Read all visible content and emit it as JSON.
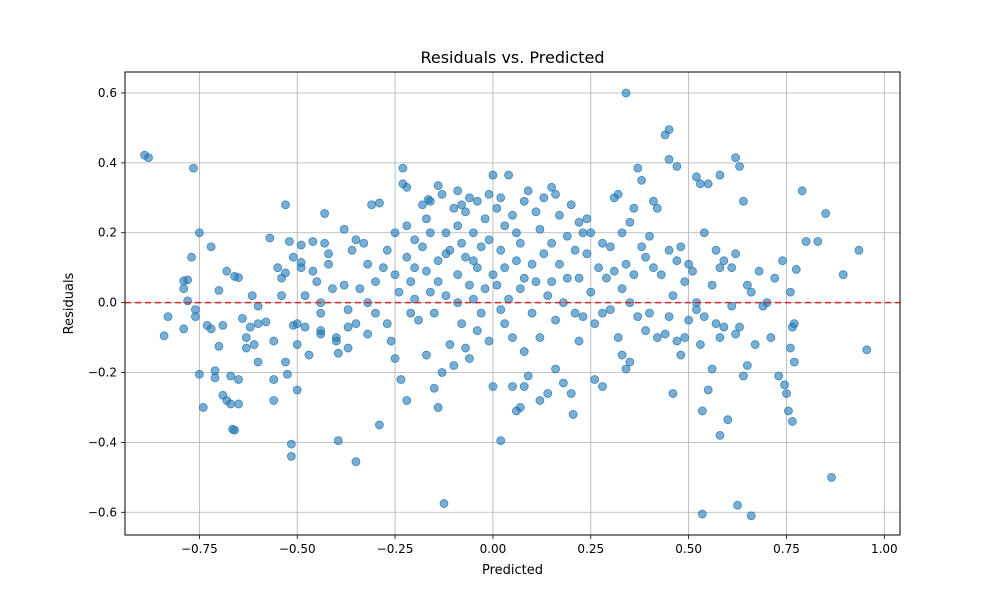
{
  "chart_data": {
    "type": "scatter",
    "title": "Residuals vs. Predicted",
    "xlabel": "Predicted",
    "ylabel": "Residuals",
    "xlim": [
      -0.94,
      1.04
    ],
    "ylim": [
      -0.665,
      0.66
    ],
    "xticks": [
      -0.75,
      -0.5,
      -0.25,
      0.0,
      0.25,
      0.5,
      0.75,
      1.0
    ],
    "xtick_labels": [
      "−0.75",
      "−0.50",
      "−0.25",
      "0.00",
      "0.25",
      "0.50",
      "0.75",
      "1.00"
    ],
    "yticks": [
      -0.6,
      -0.4,
      -0.2,
      0.0,
      0.2,
      0.4,
      0.6
    ],
    "ytick_labels": [
      "−0.6",
      "−0.4",
      "−0.2",
      "0.0",
      "0.2",
      "0.4",
      "0.6"
    ],
    "grid": true,
    "point_color": "#1f77b4",
    "point_alpha": 0.6,
    "reference_line": {
      "y": 0.0,
      "color": "#d62728",
      "style": "dashed"
    },
    "points": [
      [
        -0.89,
        0.422
      ],
      [
        -0.88,
        0.415
      ],
      [
        -0.765,
        0.385
      ],
      [
        -0.75,
        0.2
      ],
      [
        -0.72,
        0.16
      ],
      [
        -0.77,
        0.13
      ],
      [
        -0.78,
        0.065
      ],
      [
        -0.79,
        0.062
      ],
      [
        -0.79,
        0.04
      ],
      [
        -0.84,
        -0.095
      ],
      [
        -0.83,
        -0.04
      ],
      [
        -0.79,
        -0.075
      ],
      [
        -0.78,
        0.005
      ],
      [
        -0.76,
        -0.02
      ],
      [
        -0.76,
        -0.04
      ],
      [
        -0.75,
        -0.205
      ],
      [
        -0.74,
        -0.3
      ],
      [
        -0.73,
        -0.065
      ],
      [
        -0.72,
        -0.075
      ],
      [
        -0.71,
        -0.195
      ],
      [
        -0.71,
        -0.215
      ],
      [
        -0.7,
        -0.125
      ],
      [
        -0.7,
        0.035
      ],
      [
        -0.69,
        -0.065
      ],
      [
        -0.69,
        -0.265
      ],
      [
        -0.68,
        -0.28
      ],
      [
        -0.67,
        -0.29
      ],
      [
        -0.67,
        -0.21
      ],
      [
        -0.665,
        -0.362
      ],
      [
        -0.66,
        -0.365
      ],
      [
        -0.68,
        0.09
      ],
      [
        -0.66,
        0.075
      ],
      [
        -0.65,
        0.072
      ],
      [
        -0.65,
        -0.22
      ],
      [
        -0.65,
        -0.29
      ],
      [
        -0.64,
        -0.045
      ],
      [
        -0.63,
        -0.13
      ],
      [
        -0.63,
        -0.1
      ],
      [
        -0.62,
        -0.07
      ],
      [
        -0.61,
        -0.12
      ],
      [
        -0.615,
        0.02
      ],
      [
        -0.6,
        -0.01
      ],
      [
        -0.6,
        -0.06
      ],
      [
        -0.6,
        -0.17
      ],
      [
        -0.58,
        -0.055
      ],
      [
        -0.57,
        0.185
      ],
      [
        -0.56,
        -0.11
      ],
      [
        -0.56,
        -0.22
      ],
      [
        -0.56,
        -0.28
      ],
      [
        -0.55,
        0.1
      ],
      [
        -0.54,
        0.07
      ],
      [
        -0.54,
        0.02
      ],
      [
        -0.53,
        0.085
      ],
      [
        -0.53,
        -0.17
      ],
      [
        -0.525,
        -0.205
      ],
      [
        -0.53,
        0.28
      ],
      [
        -0.52,
        0.175
      ],
      [
        -0.51,
        0.13
      ],
      [
        -0.5,
        -0.06
      ],
      [
        -0.51,
        -0.065
      ],
      [
        -0.515,
        -0.405
      ],
      [
        -0.515,
        -0.44
      ],
      [
        -0.5,
        -0.25
      ],
      [
        -0.5,
        -0.12
      ],
      [
        -0.49,
        0.165
      ],
      [
        -0.49,
        0.115
      ],
      [
        -0.49,
        0.1
      ],
      [
        -0.48,
        0.02
      ],
      [
        -0.48,
        -0.07
      ],
      [
        -0.47,
        -0.15
      ],
      [
        -0.46,
        0.175
      ],
      [
        -0.46,
        0.09
      ],
      [
        -0.45,
        0.06
      ],
      [
        -0.44,
        0.0
      ],
      [
        -0.44,
        -0.03
      ],
      [
        -0.44,
        -0.08
      ],
      [
        -0.44,
        -0.09
      ],
      [
        -0.43,
        0.255
      ],
      [
        -0.43,
        0.17
      ],
      [
        -0.42,
        0.14
      ],
      [
        -0.42,
        0.11
      ],
      [
        -0.41,
        0.04
      ],
      [
        -0.4,
        -0.1
      ],
      [
        -0.4,
        -0.11
      ],
      [
        -0.395,
        -0.145
      ],
      [
        -0.395,
        -0.395
      ],
      [
        -0.38,
        0.21
      ],
      [
        -0.38,
        0.05
      ],
      [
        -0.37,
        -0.02
      ],
      [
        -0.37,
        -0.07
      ],
      [
        -0.37,
        -0.13
      ],
      [
        -0.36,
        0.15
      ],
      [
        -0.35,
        0.18
      ],
      [
        -0.35,
        -0.06
      ],
      [
        -0.35,
        -0.455
      ],
      [
        -0.34,
        0.04
      ],
      [
        -0.33,
        0.17
      ],
      [
        -0.32,
        0.11
      ],
      [
        -0.32,
        0.0
      ],
      [
        -0.32,
        -0.09
      ],
      [
        -0.31,
        0.28
      ],
      [
        -0.3,
        0.06
      ],
      [
        -0.3,
        -0.03
      ],
      [
        -0.29,
        0.285
      ],
      [
        -0.29,
        -0.35
      ],
      [
        -0.28,
        0.1
      ],
      [
        -0.27,
        0.15
      ],
      [
        -0.27,
        -0.06
      ],
      [
        -0.26,
        -0.11
      ],
      [
        -0.25,
        0.2
      ],
      [
        -0.25,
        0.08
      ],
      [
        -0.25,
        -0.16
      ],
      [
        -0.24,
        0.03
      ],
      [
        -0.235,
        -0.22
      ],
      [
        -0.23,
        0.385
      ],
      [
        -0.23,
        0.34
      ],
      [
        -0.22,
        0.33
      ],
      [
        -0.22,
        0.22
      ],
      [
        -0.22,
        0.13
      ],
      [
        -0.22,
        -0.28
      ],
      [
        -0.21,
        0.06
      ],
      [
        -0.21,
        -0.03
      ],
      [
        -0.2,
        0.18
      ],
      [
        -0.2,
        0.1
      ],
      [
        -0.2,
        0.01
      ],
      [
        -0.19,
        -0.05
      ],
      [
        -0.18,
        0.28
      ],
      [
        -0.18,
        0.16
      ],
      [
        -0.17,
        0.24
      ],
      [
        -0.17,
        0.09
      ],
      [
        -0.17,
        -0.15
      ],
      [
        -0.165,
        0.295
      ],
      [
        -0.16,
        0.29
      ],
      [
        -0.16,
        0.2
      ],
      [
        -0.16,
        0.03
      ],
      [
        -0.15,
        -0.03
      ],
      [
        -0.15,
        -0.245
      ],
      [
        -0.14,
        0.335
      ],
      [
        -0.14,
        0.12
      ],
      [
        -0.14,
        0.06
      ],
      [
        -0.14,
        -0.3
      ],
      [
        -0.13,
        0.31
      ],
      [
        -0.13,
        -0.2
      ],
      [
        -0.125,
        -0.575
      ],
      [
        -0.12,
        0.2
      ],
      [
        -0.12,
        0.14
      ],
      [
        -0.12,
        0.02
      ],
      [
        -0.11,
        0.15
      ],
      [
        -0.11,
        -0.12
      ],
      [
        -0.1,
        0.27
      ],
      [
        -0.1,
        -0.18
      ],
      [
        -0.09,
        0.32
      ],
      [
        -0.09,
        0.22
      ],
      [
        -0.09,
        0.08
      ],
      [
        -0.09,
        0.0
      ],
      [
        -0.08,
        0.28
      ],
      [
        -0.08,
        0.17
      ],
      [
        -0.08,
        -0.06
      ],
      [
        -0.07,
        0.26
      ],
      [
        -0.07,
        0.13
      ],
      [
        -0.07,
        -0.13
      ],
      [
        -0.06,
        0.3
      ],
      [
        -0.06,
        0.05
      ],
      [
        -0.06,
        -0.16
      ],
      [
        -0.05,
        0.2
      ],
      [
        -0.05,
        0.12
      ],
      [
        -0.05,
        0.01
      ],
      [
        -0.04,
        0.29
      ],
      [
        -0.04,
        0.1
      ],
      [
        -0.04,
        -0.08
      ],
      [
        -0.03,
        0.16
      ],
      [
        -0.03,
        -0.03
      ],
      [
        -0.02,
        0.24
      ],
      [
        -0.02,
        0.04
      ],
      [
        -0.01,
        0.31
      ],
      [
        -0.01,
        0.18
      ],
      [
        -0.01,
        -0.11
      ],
      [
        0.0,
        0.365
      ],
      [
        0.0,
        0.08
      ],
      [
        0.0,
        -0.24
      ],
      [
        0.01,
        0.27
      ],
      [
        0.01,
        0.05
      ],
      [
        0.02,
        0.3
      ],
      [
        0.02,
        0.15
      ],
      [
        0.02,
        -0.02
      ],
      [
        0.02,
        -0.395
      ],
      [
        0.03,
        0.22
      ],
      [
        0.03,
        0.1
      ],
      [
        0.03,
        -0.06
      ],
      [
        0.04,
        0.365
      ],
      [
        0.04,
        0.01
      ],
      [
        0.05,
        0.25
      ],
      [
        0.05,
        -0.1
      ],
      [
        0.05,
        -0.24
      ],
      [
        0.06,
        0.2
      ],
      [
        0.06,
        0.12
      ],
      [
        0.06,
        -0.31
      ],
      [
        0.07,
        0.17
      ],
      [
        0.07,
        0.04
      ],
      [
        0.07,
        -0.3
      ],
      [
        0.08,
        0.29
      ],
      [
        0.08,
        0.07
      ],
      [
        0.08,
        -0.14
      ],
      [
        0.08,
        -0.24
      ],
      [
        0.09,
        0.32
      ],
      [
        0.09,
        -0.21
      ],
      [
        0.1,
        0.11
      ],
      [
        0.1,
        -0.03
      ],
      [
        0.11,
        0.26
      ],
      [
        0.11,
        0.06
      ],
      [
        0.12,
        0.21
      ],
      [
        0.12,
        -0.1
      ],
      [
        0.12,
        -0.28
      ],
      [
        0.13,
        0.3
      ],
      [
        0.13,
        0.14
      ],
      [
        0.14,
        0.02
      ],
      [
        0.14,
        -0.26
      ],
      [
        0.15,
        0.33
      ],
      [
        0.15,
        0.17
      ],
      [
        0.15,
        0.06
      ],
      [
        0.16,
        0.31
      ],
      [
        0.16,
        -0.05
      ],
      [
        0.16,
        -0.19
      ],
      [
        0.17,
        0.25
      ],
      [
        0.17,
        0.11
      ],
      [
        0.18,
        0.0
      ],
      [
        0.18,
        -0.23
      ],
      [
        0.19,
        0.19
      ],
      [
        0.19,
        0.07
      ],
      [
        0.2,
        0.28
      ],
      [
        0.2,
        -0.26
      ],
      [
        0.205,
        -0.32
      ],
      [
        0.21,
        0.15
      ],
      [
        0.21,
        -0.03
      ],
      [
        0.22,
        0.23
      ],
      [
        0.22,
        0.07
      ],
      [
        0.22,
        -0.11
      ],
      [
        0.23,
        0.2
      ],
      [
        0.23,
        -0.04
      ],
      [
        0.24,
        0.24
      ],
      [
        0.24,
        0.14
      ],
      [
        0.25,
        0.2
      ],
      [
        0.25,
        0.03
      ],
      [
        0.26,
        -0.06
      ],
      [
        0.26,
        -0.22
      ],
      [
        0.27,
        0.1
      ],
      [
        0.28,
        0.17
      ],
      [
        0.28,
        -0.03
      ],
      [
        0.28,
        -0.24
      ],
      [
        0.29,
        0.07
      ],
      [
        0.3,
        0.16
      ],
      [
        0.3,
        -0.02
      ],
      [
        0.31,
        0.3
      ],
      [
        0.31,
        0.09
      ],
      [
        0.32,
        0.31
      ],
      [
        0.32,
        -0.1
      ],
      [
        0.33,
        0.2
      ],
      [
        0.33,
        0.04
      ],
      [
        0.33,
        -0.15
      ],
      [
        0.34,
        0.6
      ],
      [
        0.34,
        0.11
      ],
      [
        0.34,
        -0.19
      ],
      [
        0.35,
        0.23
      ],
      [
        0.35,
        0.0
      ],
      [
        0.35,
        -0.17
      ],
      [
        0.36,
        0.27
      ],
      [
        0.36,
        0.08
      ],
      [
        0.37,
        0.385
      ],
      [
        0.37,
        -0.04
      ],
      [
        0.38,
        0.35
      ],
      [
        0.38,
        0.16
      ],
      [
        0.39,
        0.13
      ],
      [
        0.39,
        -0.08
      ],
      [
        0.4,
        0.19
      ],
      [
        0.4,
        -0.03
      ],
      [
        0.41,
        0.29
      ],
      [
        0.41,
        0.1
      ],
      [
        0.42,
        0.27
      ],
      [
        0.42,
        -0.1
      ],
      [
        0.43,
        0.08
      ],
      [
        0.44,
        0.48
      ],
      [
        0.44,
        -0.09
      ],
      [
        0.45,
        0.495
      ],
      [
        0.45,
        0.41
      ],
      [
        0.45,
        0.15
      ],
      [
        0.45,
        -0.04
      ],
      [
        0.46,
        0.02
      ],
      [
        0.46,
        -0.26
      ],
      [
        0.47,
        0.39
      ],
      [
        0.47,
        0.12
      ],
      [
        0.47,
        -0.11
      ],
      [
        0.48,
        0.16
      ],
      [
        0.48,
        -0.15
      ],
      [
        0.49,
        0.06
      ],
      [
        0.49,
        -0.1
      ],
      [
        0.5,
        0.11
      ],
      [
        0.5,
        -0.05
      ],
      [
        0.51,
        0.09
      ],
      [
        0.52,
        0.36
      ],
      [
        0.52,
        0.0
      ],
      [
        0.53,
        0.34
      ],
      [
        0.53,
        -0.12
      ],
      [
        0.535,
        -0.31
      ],
      [
        0.535,
        -0.605
      ],
      [
        0.54,
        0.2
      ],
      [
        0.54,
        -0.04
      ],
      [
        0.55,
        0.34
      ],
      [
        0.55,
        -0.25
      ],
      [
        0.56,
        0.05
      ],
      [
        0.56,
        -0.19
      ],
      [
        0.57,
        0.15
      ],
      [
        0.57,
        -0.06
      ],
      [
        0.58,
        0.365
      ],
      [
        0.58,
        -0.1
      ],
      [
        0.58,
        -0.38
      ],
      [
        0.59,
        0.12
      ],
      [
        0.59,
        -0.07
      ],
      [
        0.6,
        -0.335
      ],
      [
        0.61,
        0.1
      ],
      [
        0.61,
        -0.01
      ],
      [
        0.62,
        0.14
      ],
      [
        0.62,
        0.415
      ],
      [
        0.62,
        -0.09
      ],
      [
        0.625,
        -0.58
      ],
      [
        0.63,
        0.39
      ],
      [
        0.63,
        -0.07
      ],
      [
        0.64,
        0.29
      ],
      [
        0.64,
        -0.21
      ],
      [
        0.65,
        0.05
      ],
      [
        0.65,
        -0.18
      ],
      [
        0.66,
        -0.61
      ],
      [
        0.66,
        0.03
      ],
      [
        0.67,
        -0.12
      ],
      [
        0.68,
        0.09
      ],
      [
        0.69,
        -0.01
      ],
      [
        0.7,
        0.0
      ],
      [
        0.71,
        -0.1
      ],
      [
        0.72,
        0.07
      ],
      [
        0.73,
        -0.21
      ],
      [
        0.74,
        0.12
      ],
      [
        0.745,
        -0.235
      ],
      [
        0.75,
        -0.26
      ],
      [
        0.755,
        -0.31
      ],
      [
        0.76,
        -0.13
      ],
      [
        0.76,
        0.03
      ],
      [
        0.765,
        -0.34
      ],
      [
        0.77,
        -0.06
      ],
      [
        0.775,
        0.095
      ],
      [
        0.79,
        0.32
      ],
      [
        0.8,
        0.175
      ],
      [
        0.83,
        0.175
      ],
      [
        0.85,
        0.255
      ],
      [
        0.865,
        -0.5
      ],
      [
        0.895,
        0.08
      ],
      [
        0.935,
        0.15
      ],
      [
        0.955,
        -0.135
      ],
      [
        0.77,
        -0.17
      ],
      [
        0.765,
        -0.07
      ],
      [
        0.58,
        0.1
      ],
      [
        0.52,
        -0.02
      ]
    ]
  }
}
